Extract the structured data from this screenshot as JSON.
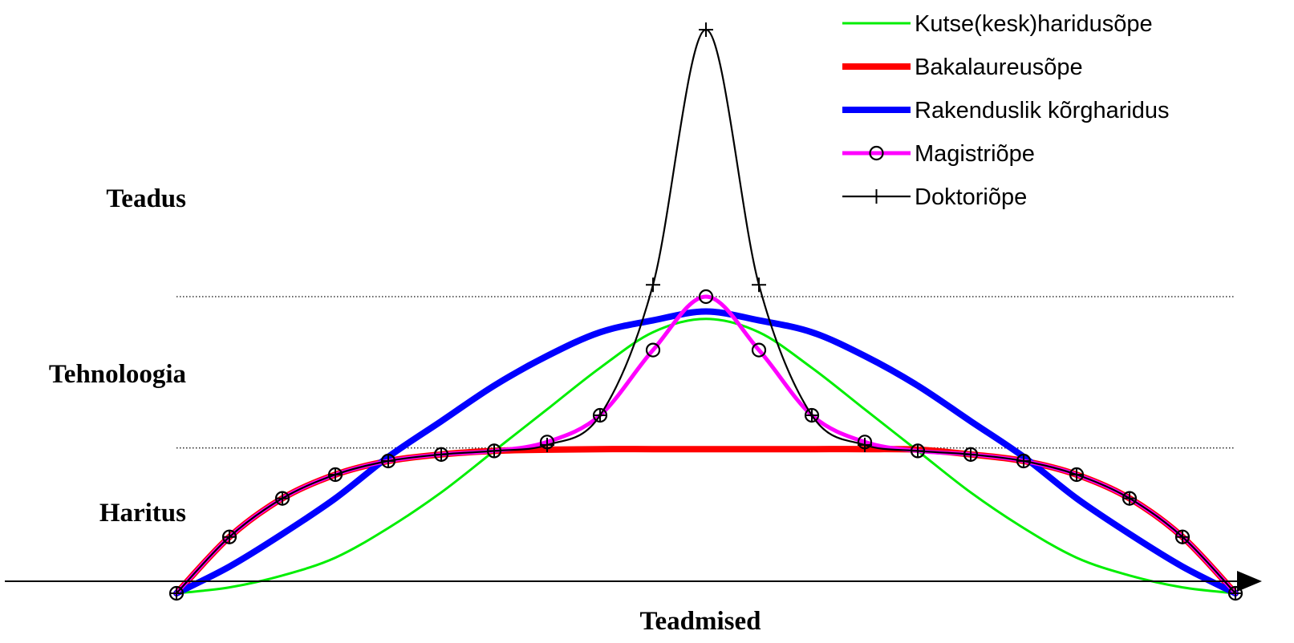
{
  "chart_data": {
    "type": "line",
    "xlabel": "Teadmised",
    "ylabel": "",
    "xlim": [
      0,
      1
    ],
    "ylim": [
      0,
      1
    ],
    "zones": [
      {
        "label": "Haritus",
        "to": 0.245
      },
      {
        "label": "Tehnoloogia",
        "from": 0.245,
        "to": 0.5
      },
      {
        "label": "Teadus",
        "from": 0.5
      }
    ],
    "boundaries": [
      0.245,
      0.5
    ],
    "legend_position": "top-right",
    "series": [
      {
        "name": "Kutse(kesk)haridusõpe",
        "color": "#00ee00",
        "marker": "none",
        "x": [
          0,
          0.05,
          0.1,
          0.15,
          0.2,
          0.25,
          0.3,
          0.35,
          0.4,
          0.45,
          0.5,
          0.55,
          0.6,
          0.65,
          0.7,
          0.75,
          0.8,
          0.85,
          0.9,
          0.95,
          1
        ],
        "y": [
          0,
          0.01,
          0.03,
          0.06,
          0.11,
          0.17,
          0.24,
          0.31,
          0.38,
          0.44,
          0.4625,
          0.44,
          0.38,
          0.31,
          0.24,
          0.17,
          0.11,
          0.06,
          0.03,
          0.01,
          0
        ]
      },
      {
        "name": "Bakalaureusõpe",
        "color": "#ff0000",
        "marker": "none",
        "x": [
          0,
          0.05,
          0.1,
          0.15,
          0.2,
          0.25,
          0.3,
          0.35,
          0.4,
          0.45,
          0.5,
          0.55,
          0.6,
          0.65,
          0.7,
          0.75,
          0.8,
          0.85,
          0.9,
          0.95,
          1
        ],
        "y": [
          0,
          0.095,
          0.16,
          0.2,
          0.223,
          0.234,
          0.24,
          0.242,
          0.243,
          0.243,
          0.243,
          0.243,
          0.243,
          0.243,
          0.242,
          0.234,
          0.223,
          0.2,
          0.16,
          0.095,
          0
        ]
      },
      {
        "name": "Rakenduslik kõrgharidus",
        "color": "#0000ff",
        "marker": "none",
        "x": [
          0,
          0.05,
          0.1,
          0.15,
          0.2,
          0.25,
          0.3,
          0.35,
          0.4,
          0.45,
          0.5,
          0.55,
          0.6,
          0.65,
          0.7,
          0.75,
          0.8,
          0.85,
          0.9,
          0.95,
          1
        ],
        "y": [
          0,
          0.045,
          0.1,
          0.16,
          0.23,
          0.29,
          0.35,
          0.4,
          0.44,
          0.46,
          0.475,
          0.46,
          0.44,
          0.4,
          0.35,
          0.29,
          0.23,
          0.16,
          0.1,
          0.045,
          0
        ]
      },
      {
        "name": "Magistriõpe",
        "color": "#ff00ff",
        "marker": "circle",
        "x": [
          0,
          0.05,
          0.1,
          0.15,
          0.2,
          0.25,
          0.3,
          0.35,
          0.4,
          0.45,
          0.5,
          0.55,
          0.6,
          0.65,
          0.7,
          0.75,
          0.8,
          0.85,
          0.9,
          0.95,
          1
        ],
        "y": [
          0,
          0.095,
          0.16,
          0.2,
          0.223,
          0.234,
          0.24,
          0.255,
          0.3,
          0.41,
          0.5,
          0.41,
          0.3,
          0.255,
          0.24,
          0.234,
          0.223,
          0.2,
          0.16,
          0.095,
          0
        ]
      },
      {
        "name": "Doktoriõpe",
        "color": "#000000",
        "marker": "plus",
        "x": [
          0,
          0.05,
          0.1,
          0.15,
          0.2,
          0.25,
          0.3,
          0.35,
          0.4,
          0.45,
          0.5,
          0.55,
          0.6,
          0.65,
          0.7,
          0.75,
          0.8,
          0.85,
          0.9,
          0.95,
          1
        ],
        "y": [
          0,
          0.095,
          0.16,
          0.2,
          0.223,
          0.234,
          0.24,
          0.25,
          0.3,
          0.52,
          0.95,
          0.52,
          0.3,
          0.25,
          0.24,
          0.234,
          0.223,
          0.2,
          0.16,
          0.095,
          0
        ]
      }
    ]
  }
}
